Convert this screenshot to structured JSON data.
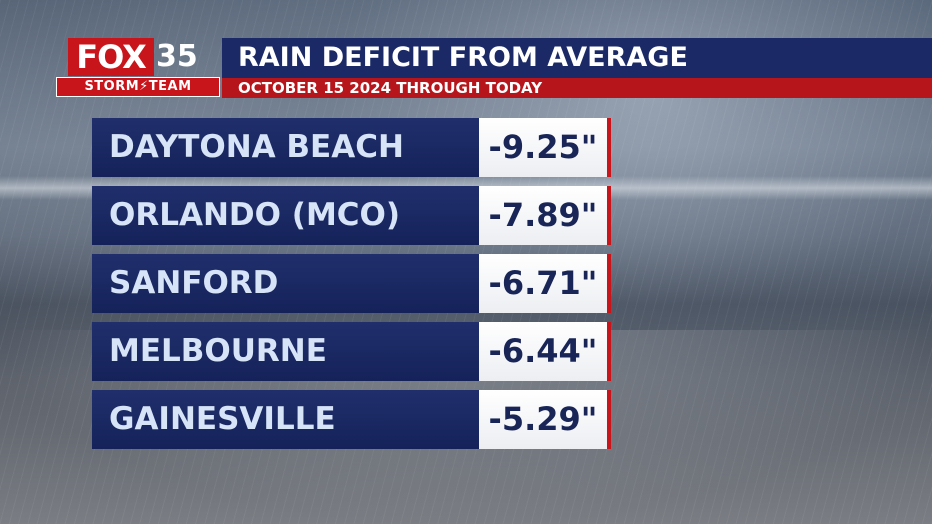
{
  "branding": {
    "fox": "FOX",
    "channel": "35",
    "team": "STORM⚡TEAM"
  },
  "header": {
    "title": "RAIN DEFICIT FROM AVERAGE",
    "subtitle": "OCTOBER 15 2024 THROUGH TODAY"
  },
  "rows": [
    {
      "name": "DAYTONA BEACH",
      "value": "-9.25\""
    },
    {
      "name": "ORLANDO (MCO)",
      "value": "-7.89\""
    },
    {
      "name": "SANFORD",
      "value": "-6.71\""
    },
    {
      "name": "MELBOURNE",
      "value": "-6.44\""
    },
    {
      "name": "GAINESVILLE",
      "value": "-5.29\""
    }
  ],
  "colors": {
    "navy": "#1b2a66",
    "red": "#c8151b",
    "value_text": "#182556",
    "name_text": "#d7e4f7"
  }
}
